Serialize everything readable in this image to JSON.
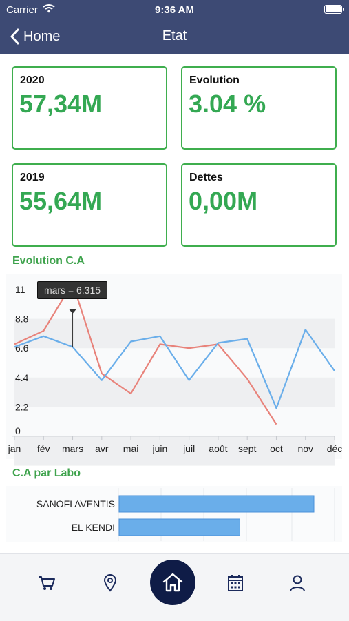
{
  "status_bar": {
    "carrier": "Carrier",
    "time": "9:36 AM"
  },
  "nav": {
    "back_label": "Home",
    "title": "Etat"
  },
  "cards": [
    {
      "label": "2020",
      "value": "57,34M"
    },
    {
      "label": "Evolution",
      "value": "3.04 %"
    },
    {
      "label": "2019",
      "value": "55,64M"
    },
    {
      "label": "Dettes",
      "value": "0,00M"
    }
  ],
  "sections": {
    "evolution_title": "Evolution C.A",
    "labo_title": "C.A par Labo"
  },
  "chart_data": [
    {
      "type": "line",
      "title": "Evolution C.A",
      "categories": [
        "jan",
        "fév",
        "mars",
        "avr",
        "mai",
        "juin",
        "juil",
        "août",
        "sept",
        "oct",
        "nov",
        "déc"
      ],
      "series": [
        {
          "color": "#e8827a",
          "values": [
            6.9,
            7.9,
            11.5,
            4.7,
            3.2,
            6.9,
            6.6,
            6.9,
            4.3,
            0.9,
            null,
            null
          ]
        },
        {
          "color": "#6aaeea",
          "values": [
            6.7,
            7.5,
            6.7,
            4.2,
            7.1,
            7.5,
            4.2,
            7.0,
            7.3,
            2.1,
            8.0,
            4.9
          ]
        }
      ],
      "y_ticks": [
        "11",
        "8.8",
        "6.6",
        "4.4",
        "2.2",
        "0"
      ],
      "ylim": [
        0,
        11
      ],
      "grid": "horizontal bands",
      "tooltip": {
        "text": "mars = 6.315",
        "category": "mars"
      }
    },
    {
      "type": "bar",
      "orientation": "horizontal",
      "title": "C.A par Labo",
      "categories": [
        "SANOFI AVENTIS",
        "EL KENDI"
      ],
      "values": [
        1.0,
        0.62
      ],
      "color": "#6aaeea"
    }
  ],
  "tabs": [
    {
      "name": "cart-icon"
    },
    {
      "name": "location-pin-icon"
    },
    {
      "name": "home-icon"
    },
    {
      "name": "calendar-icon"
    },
    {
      "name": "user-icon"
    }
  ],
  "colors": {
    "header": "#3d4a74",
    "accent_green": "#34a853",
    "home_button": "#0f1c47",
    "icon": "#1b2a5c"
  }
}
